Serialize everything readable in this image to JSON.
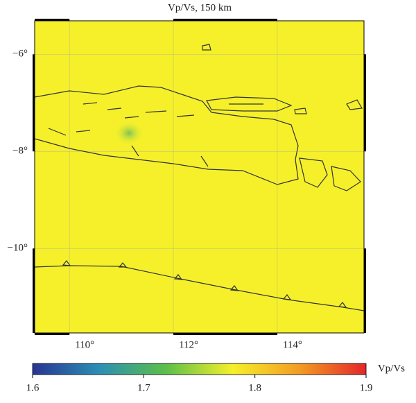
{
  "title": "Vp/Vs, 150 km",
  "map": {
    "lonlim": [
      109.33,
      115.67
    ],
    "latlim": [
      -11.74,
      -5.31
    ],
    "fill": "#f5f02a",
    "lonticks": [
      {
        "value": 110,
        "label": "110°"
      },
      {
        "value": 112,
        "label": "112°"
      },
      {
        "value": 114,
        "label": "114°"
      }
    ],
    "latticks": [
      {
        "value": -6,
        "label": "−6°"
      },
      {
        "value": -8,
        "label": "−8°"
      },
      {
        "value": -10,
        "label": "−10°"
      }
    ]
  },
  "colorbar": {
    "label": "Vp/Vs",
    "lim": [
      1.6,
      1.9
    ],
    "ticks": [
      1.6,
      1.7,
      1.8,
      1.9
    ],
    "colors": [
      "#283593",
      "#2b8fb4",
      "#5cbf4a",
      "#f5f02a",
      "#f39c22",
      "#e3262a"
    ]
  }
}
